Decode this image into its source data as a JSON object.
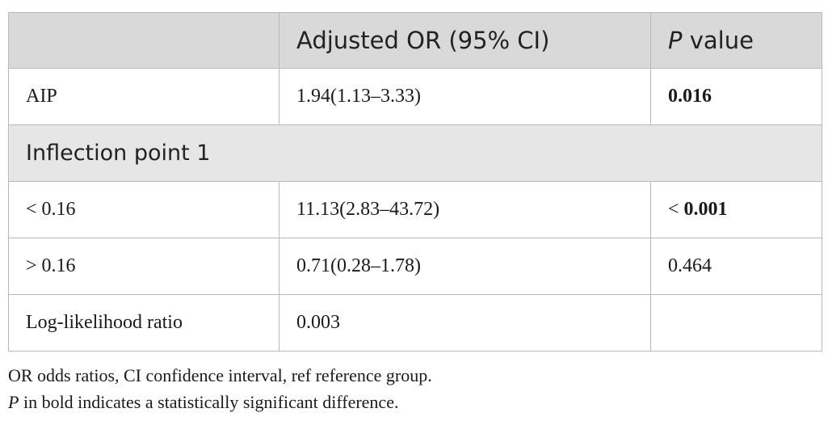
{
  "table": {
    "header": {
      "col1": "",
      "col2": "Adjusted OR (95% CI)",
      "col3_italic": "P",
      "col3_rest": " value"
    },
    "rows": [
      {
        "label": "AIP",
        "or": "1.94(1.13–3.33)",
        "p_prefix": "",
        "p_value": "0.016",
        "p_bold": true
      },
      {
        "section": "Inflection point 1"
      },
      {
        "label": "< 0.16",
        "or": "11.13(2.83–43.72)",
        "p_prefix": "< ",
        "p_value": "0.001",
        "p_bold": true
      },
      {
        "label": "> 0.16",
        "or": "0.71(0.28–1.78)",
        "p_prefix": "",
        "p_value": "0.464",
        "p_bold": false
      },
      {
        "label": "Log-likelihood ratio",
        "or": "0.003",
        "p_prefix": "",
        "p_value": "",
        "p_bold": false
      }
    ]
  },
  "footnotes": {
    "line1": "OR odds ratios, CI confidence interval, ref reference group.",
    "line2_italic": "P",
    "line2_rest": " in bold indicates a statistically significant difference."
  }
}
